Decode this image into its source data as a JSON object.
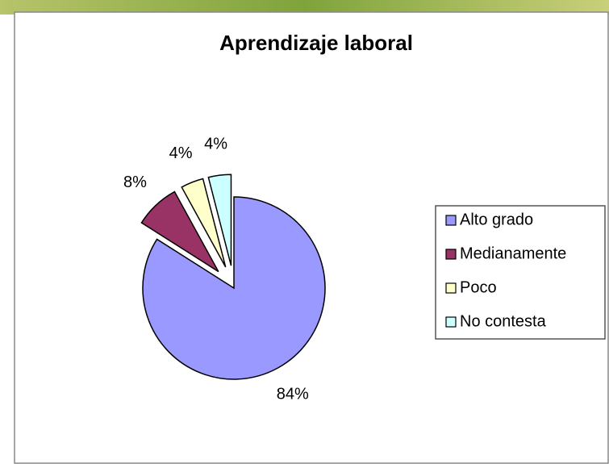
{
  "chart_data": {
    "type": "pie",
    "title": "Aprendizaje laboral",
    "categories": [
      "Alto grado",
      "Medianamente",
      "Poco",
      "No contesta"
    ],
    "values": [
      84,
      8,
      4,
      4
    ],
    "value_labels": [
      "84%",
      "8%",
      "4%",
      "4%"
    ],
    "colors": [
      "#9999ff",
      "#993366",
      "#ffffcc",
      "#ccffff"
    ],
    "legend": "right"
  }
}
